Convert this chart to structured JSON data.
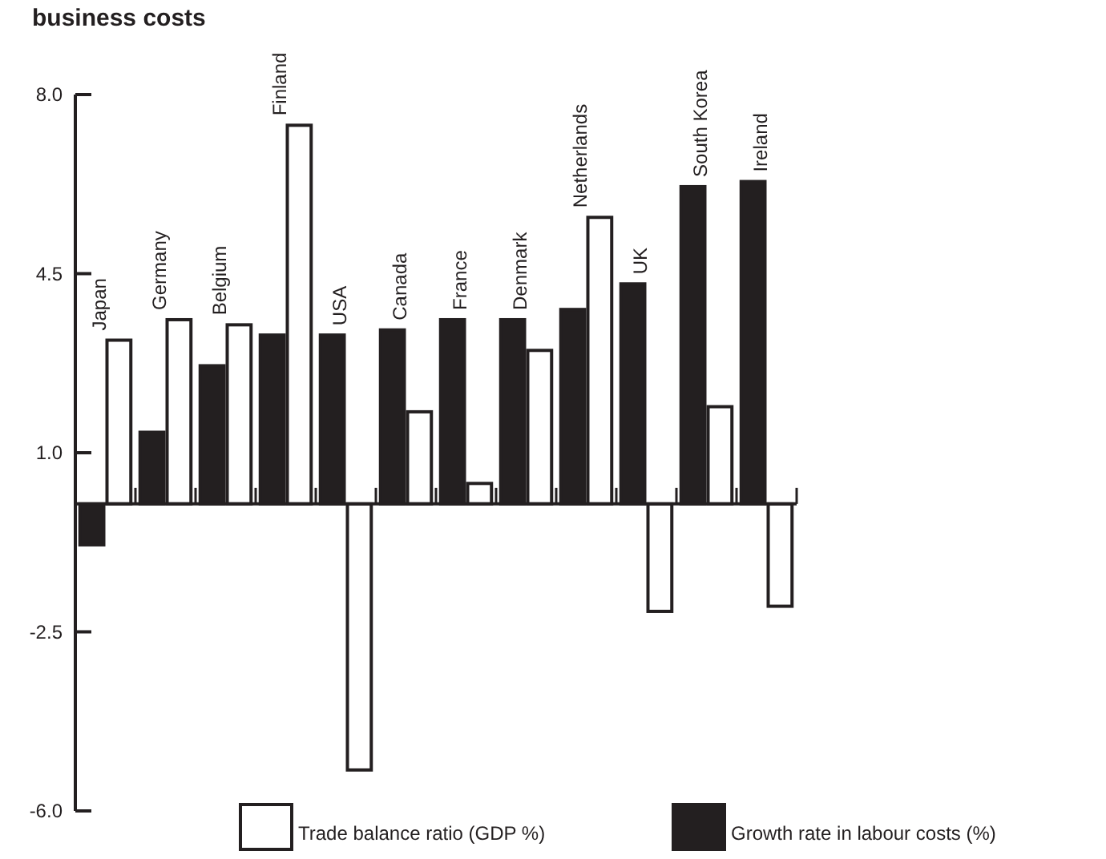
{
  "chart_data": {
    "type": "bar",
    "title": "business costs",
    "categories": [
      "Japan",
      "Germany",
      "Belgium",
      "Finland",
      "USA",
      "Canada",
      "France",
      "Denmark",
      "Netherlands",
      "UK",
      "South Korea",
      "Ireland"
    ],
    "series": [
      {
        "name": "Growth rate in labour costs (%)",
        "color": "#231f20",
        "values": [
          -0.8,
          1.4,
          2.7,
          3.3,
          3.3,
          3.4,
          3.6,
          3.6,
          3.8,
          4.3,
          6.2,
          6.3
        ]
      },
      {
        "name": "Trade balance ratio (GDP %)",
        "color": "#ffffff",
        "values": [
          3.2,
          3.6,
          3.5,
          7.4,
          -5.2,
          1.8,
          0.4,
          3.0,
          5.6,
          -2.1,
          1.9,
          -2.0
        ]
      }
    ],
    "ylim": [
      -6,
      8
    ],
    "yticks": [
      {
        "value": 8,
        "label": "8.0"
      },
      {
        "value": 4.5,
        "label": "4.5"
      },
      {
        "value": 1,
        "label": "1.0"
      },
      {
        "value": -2.5,
        "label": "-2.5"
      },
      {
        "value": -6,
        "label": "-6.0"
      }
    ],
    "grid": false,
    "legend": "bottom"
  }
}
